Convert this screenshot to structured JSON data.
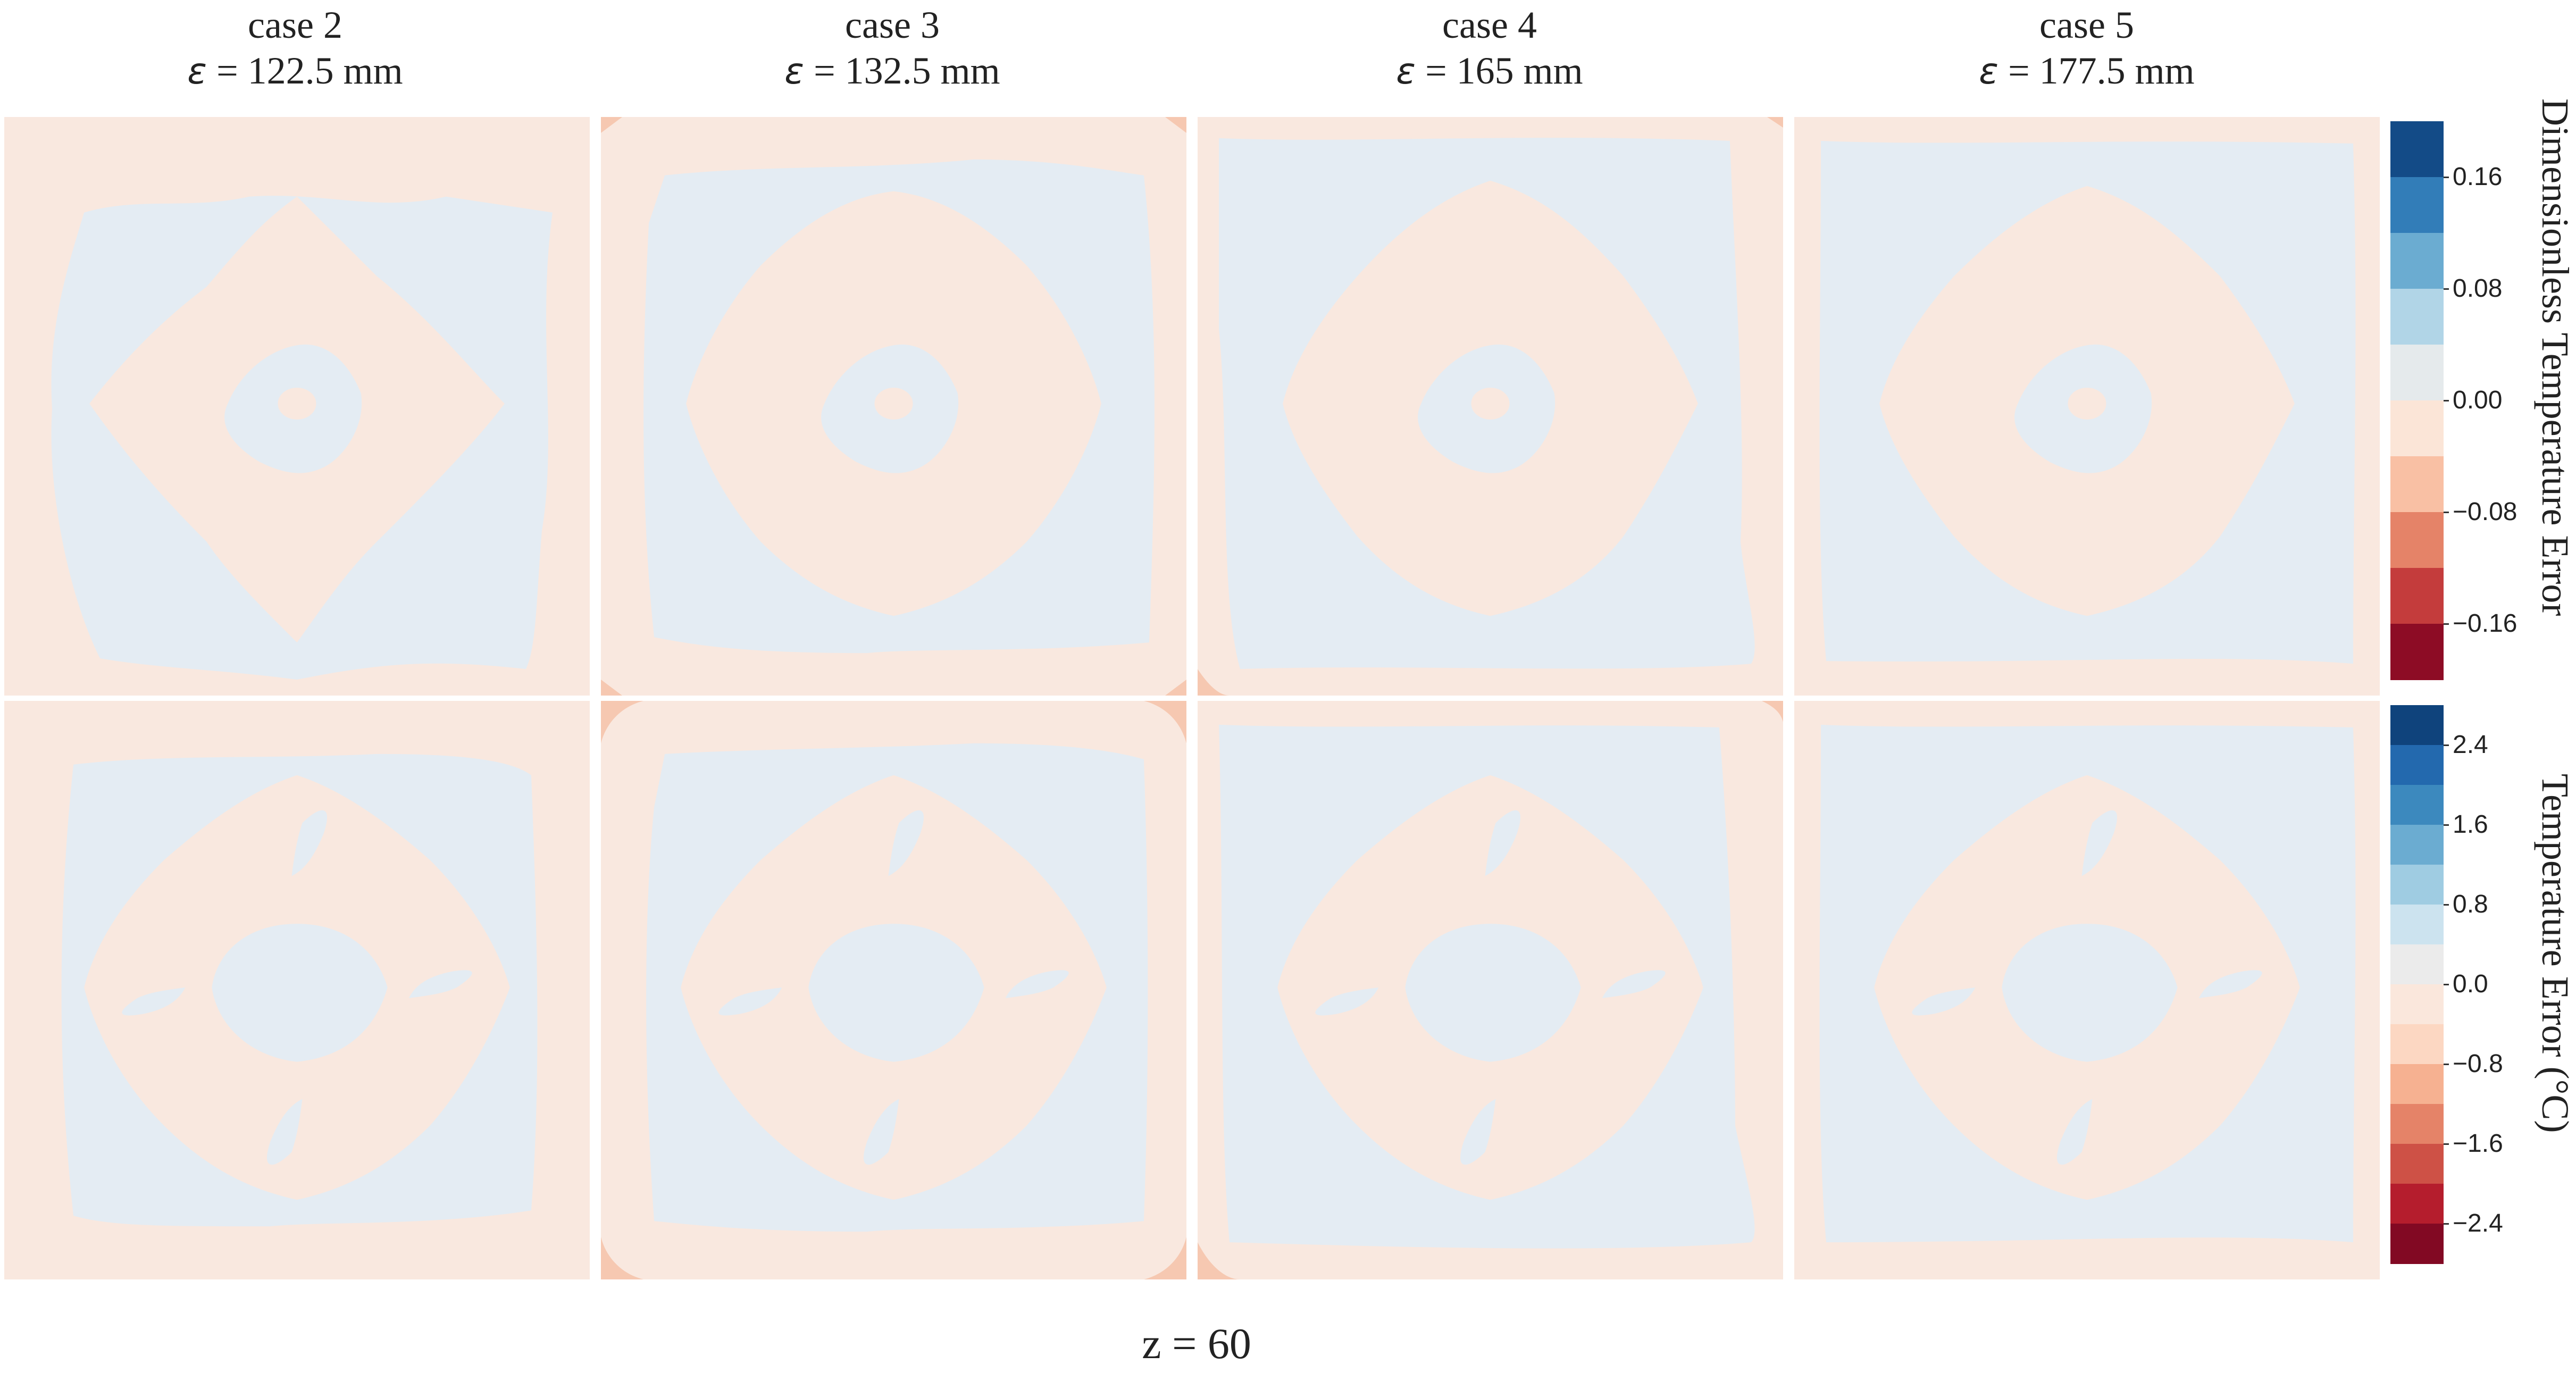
{
  "chart_data": {
    "type": "heatmap",
    "description_layout": "2 rows x 4 columns of contour maps with one colorbar per row",
    "cases": [
      {
        "title": "case 2",
        "epsilon_label": "ε",
        "epsilon_value": "= 122.5 mm"
      },
      {
        "title": "case 3",
        "epsilon_label": "ε",
        "epsilon_value": "= 132.5 mm"
      },
      {
        "title": "case 4",
        "epsilon_label": "ε",
        "epsilon_value": "= 165 mm"
      },
      {
        "title": "case 5",
        "epsilon_label": "ε",
        "epsilon_value": "= 177.5 mm"
      }
    ],
    "rows": [
      {
        "colorbar_label": "Dimensionless Temperature Error",
        "ticks": [
          "0.16",
          "0.08",
          "0.00",
          "−0.08",
          "−0.16"
        ],
        "tick_values": [
          0.16,
          0.08,
          0.0,
          -0.08,
          -0.16
        ],
        "range": [
          -0.2,
          0.2
        ],
        "levels": 10
      },
      {
        "colorbar_label": "Temperature Error (°C)",
        "ticks": [
          "2.4",
          "1.6",
          "0.8",
          "0.0",
          "−0.8",
          "−1.6",
          "−2.4"
        ],
        "tick_values": [
          2.4,
          1.6,
          0.8,
          0.0,
          -0.8,
          -1.6,
          -2.4
        ],
        "range": [
          -2.8,
          2.8
        ],
        "levels": 14
      }
    ],
    "xlabel": "z = 60",
    "colors": {
      "positive_small": "#e4ecf3",
      "negative_small": "#f9e8df",
      "negative_mid": "#f6c8b1",
      "background": "#ffffff"
    }
  }
}
